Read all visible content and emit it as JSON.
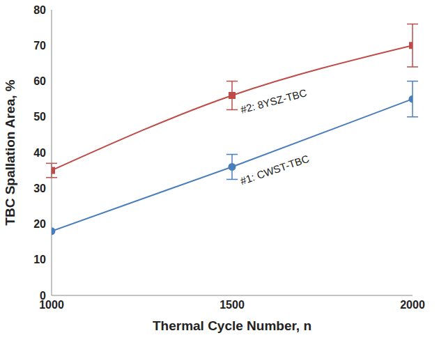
{
  "chart_data": {
    "type": "line",
    "x_label": "Thermal Cycle Number, n",
    "y_label": "TBC Spallation Area, %",
    "x": [
      1000,
      1500,
      2000
    ],
    "xlim": [
      1000,
      2000
    ],
    "xticks": [
      1000,
      1500,
      2000
    ],
    "ylim": [
      0,
      80
    ],
    "yticks": [
      0,
      10,
      20,
      30,
      40,
      50,
      60,
      70,
      80
    ],
    "grid": false,
    "series": [
      {
        "name": "#1: CWST-TBC",
        "color": "#4a7ebb",
        "marker": "circle",
        "values": [
          18,
          36,
          55
        ],
        "errors": [
          0,
          3.5,
          5
        ]
      },
      {
        "name": "#2: 8YSZ-TBC",
        "color": "#be4b48",
        "marker": "square",
        "values": [
          35,
          56,
          70
        ],
        "errors": [
          2,
          4,
          6
        ]
      }
    ]
  }
}
